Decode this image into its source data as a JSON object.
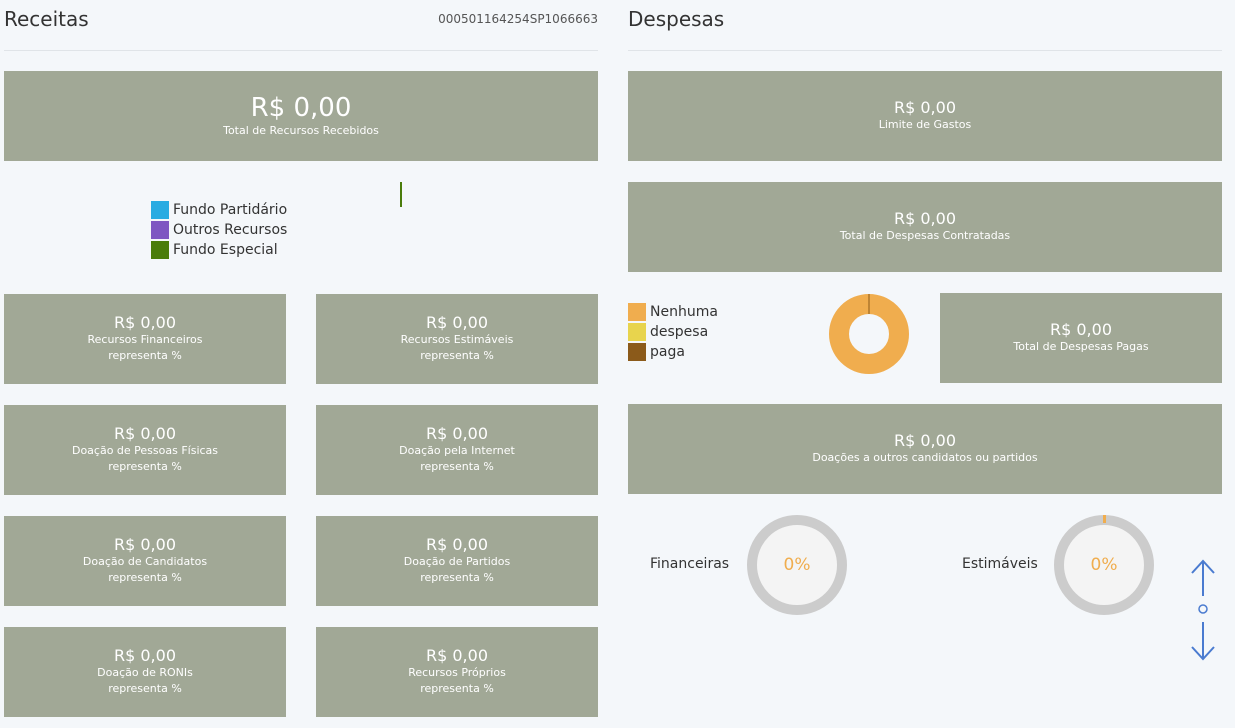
{
  "receitas": {
    "title": "Receitas",
    "id": "000501164254SP1066663",
    "total": {
      "value": "R$ 0,00",
      "label": "Total de Recursos Recebidos"
    },
    "legend": [
      {
        "label": "Fundo Partidário",
        "color": "#29abe2"
      },
      {
        "label": "Outros Recursos",
        "color": "#7e57c2"
      },
      {
        "label": "Fundo Especial",
        "color": "#4a7c0b"
      }
    ],
    "cards": [
      {
        "value": "R$ 0,00",
        "label": "Recursos Financeiros",
        "sub": "representa %"
      },
      {
        "value": "R$ 0,00",
        "label": "Recursos Estimáveis",
        "sub": "representa %"
      },
      {
        "value": "R$ 0,00",
        "label": "Doação de Pessoas Físicas",
        "sub": "representa %"
      },
      {
        "value": "R$ 0,00",
        "label": "Doação pela Internet",
        "sub": "representa %"
      },
      {
        "value": "R$ 0,00",
        "label": "Doação de Candidatos",
        "sub": "representa %"
      },
      {
        "value": "R$ 0,00",
        "label": "Doação de Partidos",
        "sub": "representa %"
      },
      {
        "value": "R$ 0,00",
        "label": "Doação de RONIs",
        "sub": "representa %"
      },
      {
        "value": "R$ 0,00",
        "label": "Recursos Próprios",
        "sub": "representa %"
      }
    ]
  },
  "despesas": {
    "title": "Despesas",
    "limite": {
      "value": "R$ 0,00",
      "label": "Limite de Gastos"
    },
    "contratadas": {
      "value": "R$ 0,00",
      "label": "Total de Despesas Contratadas"
    },
    "pagas": {
      "value": "R$ 0,00",
      "label": "Total de Despesas Pagas"
    },
    "doacoes": {
      "value": "R$ 0,00",
      "label": "Doações a outros candidatos ou partidos"
    },
    "legend": [
      {
        "label": "Nenhuma",
        "color": "#f0ad4e"
      },
      {
        "label": "despesa",
        "color": "#e8d44d"
      },
      {
        "label": "paga",
        "color": "#8b5a1a"
      }
    ],
    "gauges": [
      {
        "label": "Financeiras",
        "value": "0%"
      },
      {
        "label": "Estimáveis",
        "value": "0%"
      }
    ]
  },
  "colors": {
    "card": "#a1a896",
    "accent": "#f0ad4e",
    "arrow": "#4a7bd0"
  },
  "nav": {
    "up_icon": "arrow-up-icon",
    "down_icon": "arrow-down-icon",
    "dot_icon": "circle-icon"
  }
}
